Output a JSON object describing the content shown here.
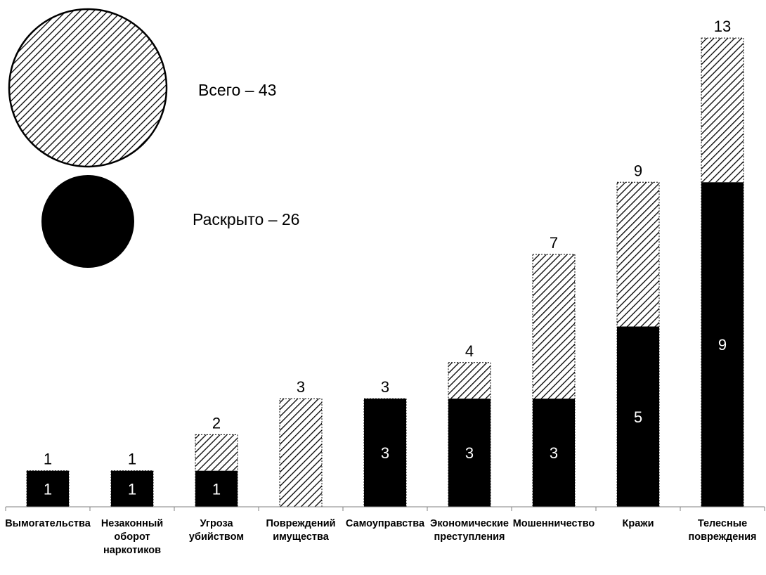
{
  "chart_data": {
    "type": "bar",
    "categories": [
      "Вымогательства",
      "Незаконный оборот наркотиков",
      "Угроза убийством",
      "Повреждений имущества",
      "Самоуправства",
      "Экономические преступления",
      "Мошенничество",
      "Кражи",
      "Телесные повреждения"
    ],
    "category_lines": [
      [
        "Вымогательства"
      ],
      [
        "Незаконный",
        "оборот",
        "наркотиков"
      ],
      [
        "Угроза",
        "убийством"
      ],
      [
        "Повреждений",
        "имущества"
      ],
      [
        "Самоуправства"
      ],
      [
        "Экономические",
        "преступления"
      ],
      [
        "Мошенничество"
      ],
      [
        "Кражи"
      ],
      [
        "Телесные",
        "повреждения"
      ]
    ],
    "series": [
      {
        "name": "Всего",
        "values": [
          1,
          1,
          2,
          3,
          3,
          4,
          7,
          9,
          13
        ],
        "pattern": "hatched"
      },
      {
        "name": "Раскрыто",
        "values": [
          1,
          1,
          1,
          0,
          3,
          3,
          3,
          5,
          9
        ],
        "pattern": "solid"
      }
    ],
    "ylim": [
      0,
      13
    ],
    "grid": false,
    "legend": {
      "placement": "top-left",
      "items": [
        {
          "text": "Всего – 43",
          "pattern": "hatched"
        },
        {
          "text": "Раскрыто – 26",
          "pattern": "solid"
        }
      ]
    },
    "colors": {
      "solid": "#000000",
      "hatch": "#000000",
      "background": "#ffffff"
    }
  }
}
